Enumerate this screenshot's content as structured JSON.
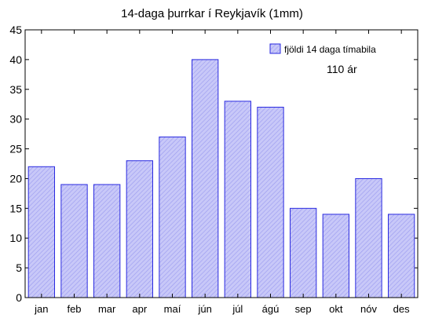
{
  "chart_data": {
    "type": "bar",
    "title": "14-daga þurrkar í Reykjavík (1mm)",
    "categories": [
      "jan",
      "feb",
      "mar",
      "apr",
      "maí",
      "jún",
      "júl",
      "ágú",
      "sep",
      "okt",
      "nóv",
      "des"
    ],
    "series": [
      {
        "name": "fjöldi 14 daga tímabila",
        "values": [
          22,
          19,
          19,
          23,
          27,
          40,
          33,
          32,
          15,
          14,
          20,
          14
        ]
      }
    ],
    "annotation": "110 ár",
    "xlabel": "",
    "ylabel": "",
    "ylim": [
      0,
      45
    ],
    "yticks": [
      0,
      5,
      10,
      15,
      20,
      25,
      30,
      35,
      40,
      45
    ],
    "grid": false,
    "legend_position": "top-right",
    "colors": {
      "bar_fill": "#c8c8f8",
      "bar_hatch": "#9a9af0",
      "bar_stroke": "#2a2ae0",
      "axis": "#000000"
    }
  }
}
